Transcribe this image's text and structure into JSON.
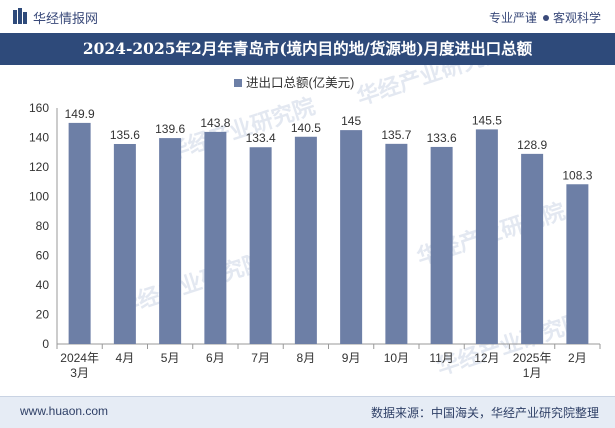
{
  "header": {
    "brand": "华经情报网",
    "slogan_left": "专业严谨",
    "slogan_right": "客观科学"
  },
  "chart_data": {
    "type": "bar",
    "title": "2024-2025年2月年青岛市(境内目的地/货源地)月度进出口总额",
    "legend": "进出口总额(亿美元)",
    "categories": [
      [
        "2024年",
        "3月"
      ],
      [
        "4月"
      ],
      [
        "5月"
      ],
      [
        "6月"
      ],
      [
        "7月"
      ],
      [
        "8月"
      ],
      [
        "9月"
      ],
      [
        "10月"
      ],
      [
        "11月"
      ],
      [
        "12月"
      ],
      [
        "2025年",
        "1月"
      ],
      [
        "2月"
      ]
    ],
    "values": [
      149.9,
      135.6,
      139.6,
      143.8,
      133.4,
      140.5,
      145,
      135.7,
      133.6,
      145.5,
      128.9,
      108.3
    ],
    "value_labels": [
      "149.9",
      "135.6",
      "139.6",
      "143.8",
      "133.4",
      "140.5",
      "145",
      "135.7",
      "133.6",
      "145.5",
      "128.9",
      "108.3"
    ],
    "yticks": [
      0,
      20,
      40,
      60,
      80,
      100,
      120,
      140,
      160
    ],
    "ylim": [
      0,
      160
    ],
    "bar_color": "#6d7fa6"
  },
  "watermark": "华经产业研究院",
  "footer": {
    "url": "www.huaon.com",
    "source": "数据来源：中国海关，华经产业研究院整理"
  }
}
